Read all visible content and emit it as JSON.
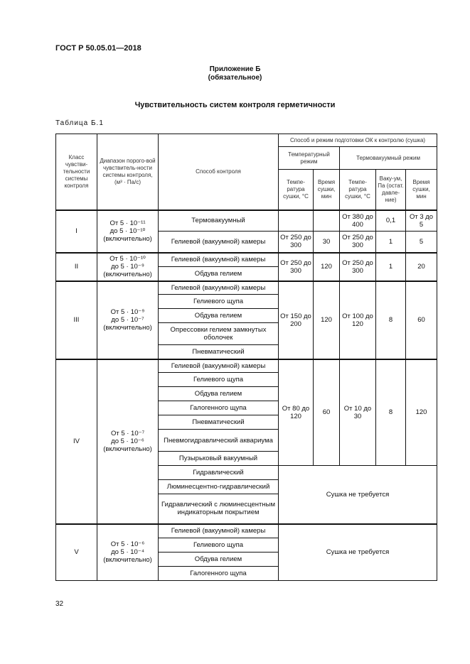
{
  "header": "ГОСТ Р 50.05.01—2018",
  "appendix": {
    "title": "Приложение Б",
    "subtitle": "(обязательное)"
  },
  "title": "Чувствительность систем контроля герметичности",
  "table_label": "Таблица Б.1",
  "columns": {
    "class": "Класс чувстви-тельности системы контроля",
    "range": "Диапазон порого-вой чувствитель-ности системы контроля,",
    "range_unit": "(м³ · Па/с)",
    "method": "Способ контроля",
    "prep": "Способ и режим подготовки ОК к контролю (сушка)",
    "temp_mode": "Температурный режим",
    "thermovac_mode": "Термовакуумный режим",
    "sub": [
      "Темпе-ратура сушки, °С",
      "Время сушки, мин",
      "Темпе-ратура сушки, °С",
      "Ваку-ум, Па (остат. давле-ние)",
      "Время сушки, мин"
    ]
  },
  "groups": [
    {
      "class": "I",
      "range": [
        "От 5 · 10⁻¹¹",
        "до 5 · 10⁻¹⁰",
        "(включительно)"
      ],
      "methods": [
        "Термовакуумный",
        "Гелиевой (вакуумной) камеры"
      ]
    },
    {
      "class": "II",
      "range": [
        "От 5 · 10⁻¹⁰",
        "до 5 · 10⁻⁹",
        "(включительно)"
      ],
      "methods": [
        "Гелиевой (вакуумной) камеры",
        "Обдува гелием"
      ],
      "vals": [
        "От 250 до 300",
        "120",
        "От 250 до 300",
        "1",
        "20"
      ]
    },
    {
      "class": "III",
      "range": [
        "От 5 · 10⁻⁹",
        "до 5 · 10⁻⁷",
        "(включительно)"
      ],
      "methods": [
        "Гелиевой (вакуумной) камеры",
        "Гелиевого щупа",
        "Обдува гелием",
        "Опрессовки гелием замкнутых оболочек",
        "Пневматический"
      ],
      "vals": [
        "От 150 до 200",
        "120",
        "От 100 до 120",
        "8",
        "60"
      ]
    },
    {
      "class": "IV",
      "range": [
        "От 5 · 10⁻⁷",
        "до 5 · 10⁻⁶",
        "(включительно)"
      ],
      "methods": [
        "Гелиевой (вакуумной) камеры",
        "Гелиевого щупа",
        "Обдува гелием",
        "Галогенного щупа",
        "Пневматический",
        "Пневмогидравлический аквариума",
        "Пузырьковый вакуумный",
        "Гидравлический",
        "Люминесцентно-гидравлический",
        "Гидравлический с люминесцентным индикаторным покрытием"
      ],
      "vals": [
        "От 80 до 120",
        "60",
        "От 10 до 30",
        "8",
        "120"
      ]
    },
    {
      "class": "V",
      "range": [
        "От 5 · 10⁻⁶",
        "до 5 · 10⁻⁴",
        "(включительно)"
      ],
      "methods": [
        "Гелиевой (вакуумной) камеры",
        "Гелиевого щупа",
        "Обдува гелием",
        "Галогенного щупа"
      ]
    }
  ],
  "class1_rows": [
    [
      "",
      "",
      "От 380 до 400",
      "0,1",
      "От 3 до 5"
    ],
    [
      "От 250 до 300",
      "30",
      "От 250 до 300",
      "1",
      "5"
    ]
  ],
  "no_drying": "Сушка не требуется",
  "page_number": "32"
}
